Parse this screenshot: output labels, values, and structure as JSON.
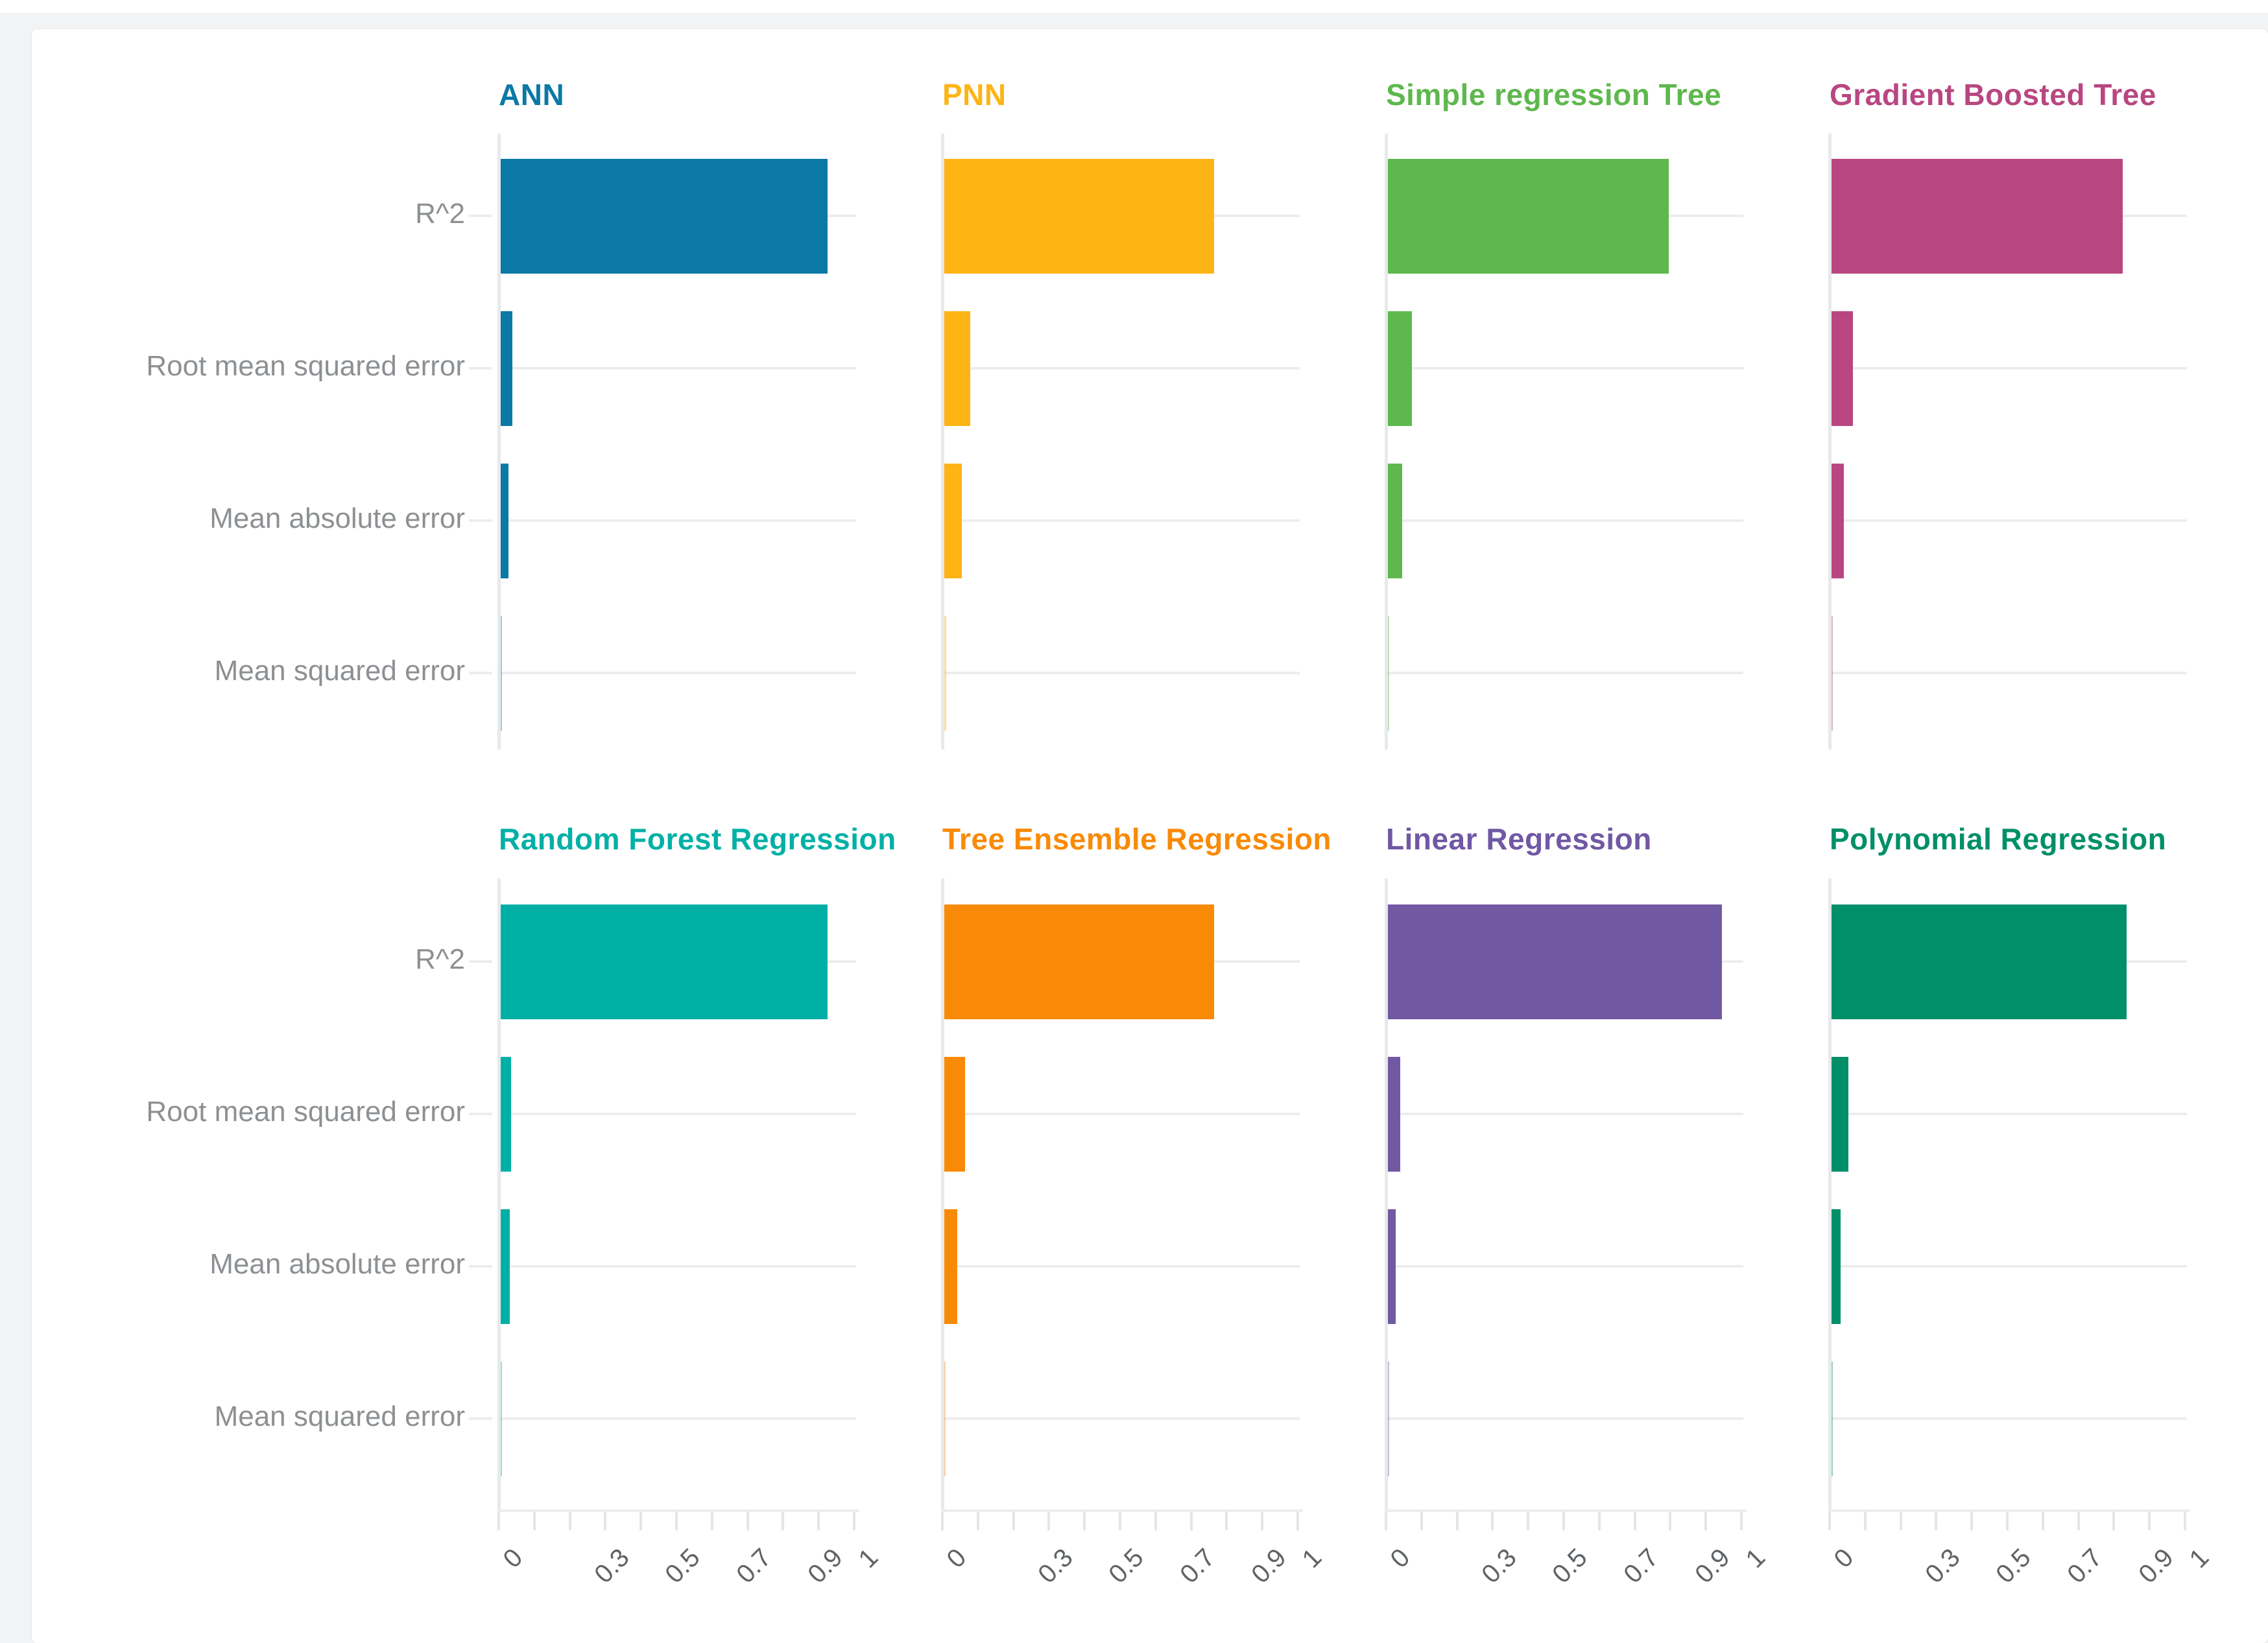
{
  "window": {
    "top_strip_color": "#ffffff",
    "page_background": "#f2f3f4",
    "card_background": "#ffffff"
  },
  "colors": {
    "grid_line": "#ededee",
    "y_axis_line": "#e7e9ea",
    "x_axis_line": "#ededee",
    "x_tick_mark": "#e3e5e6",
    "category_label_text": "#8d9093",
    "tick_label_text": "#5f6366"
  },
  "chart_data": {
    "type": "bar",
    "orientation": "horizontal",
    "layout": {
      "rows": 2,
      "cols": 4,
      "legend": "none",
      "grid": true
    },
    "categories": [
      "R^2",
      "Root mean squared error",
      "Mean absolute error",
      "Mean squared error"
    ],
    "xlim": [
      0,
      1
    ],
    "x_tick_values": [
      0,
      0.3,
      0.5,
      0.7,
      0.9,
      1
    ],
    "x_tick_labels": [
      "0",
      "0.3",
      "0.5",
      "0.7",
      "0.9",
      "1"
    ],
    "x_minor_tick_step": 0.1,
    "panels": [
      {
        "title": "ANN",
        "color": "#0b79a6",
        "values": [
          0.92,
          0.032,
          0.021,
          0.001
        ]
      },
      {
        "title": "PNN",
        "color": "#fdb414",
        "values": [
          0.76,
          0.073,
          0.049,
          0.0053
        ]
      },
      {
        "title": "Simple regression Tree",
        "color": "#5eb84d",
        "values": [
          0.79,
          0.067,
          0.04,
          0.0045
        ]
      },
      {
        "title": "Gradient Boosted Tree",
        "color": "#b84781",
        "values": [
          0.82,
          0.061,
          0.035,
          0.0037
        ]
      },
      {
        "title": "Random Forest Regression",
        "color": "#00b0a6",
        "values": [
          0.92,
          0.03,
          0.026,
          0.0009
        ]
      },
      {
        "title": "Tree Ensemble Regression",
        "color": "#f98a05",
        "values": [
          0.76,
          0.059,
          0.036,
          0.0035
        ]
      },
      {
        "title": "Linear Regression",
        "color": "#7158a3",
        "values": [
          0.94,
          0.034,
          0.021,
          0.0011
        ]
      },
      {
        "title": "Polynomial Regression",
        "color": "#008f68",
        "values": [
          0.83,
          0.048,
          0.025,
          0.0023
        ]
      }
    ]
  }
}
